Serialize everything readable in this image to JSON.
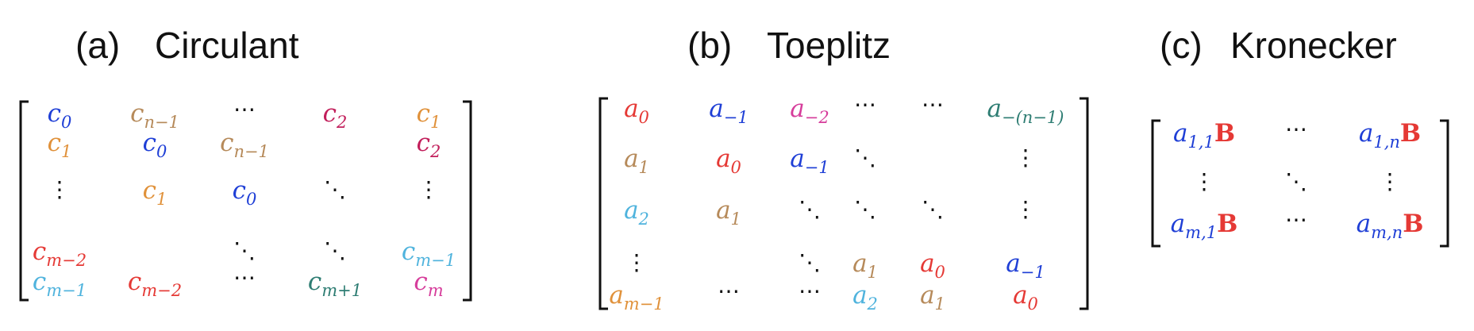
{
  "colors": {
    "blue": "#1f3fd6",
    "tan": "#b68a5a",
    "orange": "#e0913a",
    "crimson": "#c21f5b",
    "red": "#e53935",
    "sky": "#4fb3dd",
    "teal": "#2e7d73",
    "magenta": "#d63d9b",
    "text": "#111111"
  },
  "panels": [
    {
      "id": "circulant",
      "label": "(a)",
      "title": "Circulant",
      "entries": [
        {
          "r": 0,
          "c": 0,
          "base": "c",
          "sub": "0",
          "color": "blue"
        },
        {
          "r": 0,
          "c": 1,
          "base": "c",
          "sub": "n−1",
          "color": "tan"
        },
        {
          "r": 0,
          "c": 2,
          "dots": "h"
        },
        {
          "r": 0,
          "c": 3,
          "base": "c",
          "sub": "2",
          "color": "crimson"
        },
        {
          "r": 0,
          "c": 4,
          "base": "c",
          "sub": "1",
          "color": "orange"
        },
        {
          "r": 1,
          "c": 0,
          "base": "c",
          "sub": "1",
          "color": "orange"
        },
        {
          "r": 1,
          "c": 1,
          "base": "c",
          "sub": "0",
          "color": "blue"
        },
        {
          "r": 1,
          "c": 2,
          "base": "c",
          "sub": "n−1",
          "color": "tan"
        },
        {
          "r": 1,
          "c": 4,
          "base": "c",
          "sub": "2",
          "color": "crimson"
        },
        {
          "r": 2,
          "c": 0,
          "dots": "v"
        },
        {
          "r": 2,
          "c": 1,
          "base": "c",
          "sub": "1",
          "color": "orange"
        },
        {
          "r": 2,
          "c": 2,
          "base": "c",
          "sub": "0",
          "color": "blue"
        },
        {
          "r": 2,
          "c": 3,
          "dots": "d"
        },
        {
          "r": 2,
          "c": 4,
          "dots": "v"
        },
        {
          "r": 3,
          "c": 0,
          "base": "c",
          "sub": "m−2",
          "color": "red"
        },
        {
          "r": 3,
          "c": 2,
          "dots": "d"
        },
        {
          "r": 3,
          "c": 3,
          "dots": "d"
        },
        {
          "r": 3,
          "c": 4,
          "base": "c",
          "sub": "m−1",
          "color": "sky"
        },
        {
          "r": 4,
          "c": 0,
          "base": "c",
          "sub": "m−1",
          "color": "sky"
        },
        {
          "r": 4,
          "c": 1,
          "base": "c",
          "sub": "m−2",
          "color": "red"
        },
        {
          "r": 4,
          "c": 2,
          "dots": "h"
        },
        {
          "r": 4,
          "c": 3,
          "base": "c",
          "sub": "m+1",
          "color": "teal"
        },
        {
          "r": 4,
          "c": 4,
          "base": "c",
          "sub": "m",
          "color": "magenta"
        }
      ]
    },
    {
      "id": "toeplitz",
      "label": "(b)",
      "title": "Toeplitz",
      "entries": [
        {
          "r": 0,
          "c": 0,
          "base": "a",
          "sub": "0",
          "color": "red"
        },
        {
          "r": 0,
          "c": 1,
          "base": "a",
          "sub": "−1",
          "color": "blue"
        },
        {
          "r": 0,
          "c": 2,
          "base": "a",
          "sub": "−2",
          "color": "magenta"
        },
        {
          "r": 0,
          "c": 3,
          "dots": "h"
        },
        {
          "r": 0,
          "c": 4,
          "dots": "h"
        },
        {
          "r": 0,
          "c": 5,
          "base": "a",
          "sub": "−(n−1)",
          "color": "teal"
        },
        {
          "r": 1,
          "c": 0,
          "base": "a",
          "sub": "1",
          "color": "tan"
        },
        {
          "r": 1,
          "c": 1,
          "base": "a",
          "sub": "0",
          "color": "red"
        },
        {
          "r": 1,
          "c": 2,
          "base": "a",
          "sub": "−1",
          "color": "blue"
        },
        {
          "r": 1,
          "c": 3,
          "dots": "d"
        },
        {
          "r": 1,
          "c": 5,
          "dots": "v"
        },
        {
          "r": 2,
          "c": 0,
          "base": "a",
          "sub": "2",
          "color": "sky"
        },
        {
          "r": 2,
          "c": 1,
          "base": "a",
          "sub": "1",
          "color": "tan"
        },
        {
          "r": 2,
          "c": 2,
          "dots": "d"
        },
        {
          "r": 2,
          "c": 3,
          "dots": "d"
        },
        {
          "r": 2,
          "c": 4,
          "dots": "d"
        },
        {
          "r": 2,
          "c": 5,
          "dots": "v"
        },
        {
          "r": 3,
          "c": 0,
          "dots": "v"
        },
        {
          "r": 3,
          "c": 2,
          "dots": "d"
        },
        {
          "r": 3,
          "c": 3,
          "base": "a",
          "sub": "1",
          "color": "tan"
        },
        {
          "r": 3,
          "c": 4,
          "base": "a",
          "sub": "0",
          "color": "red"
        },
        {
          "r": 3,
          "c": 5,
          "base": "a",
          "sub": "−1",
          "color": "blue"
        },
        {
          "r": 4,
          "c": 0,
          "base": "a",
          "sub": "m−1",
          "color": "orange"
        },
        {
          "r": 4,
          "c": 1,
          "dots": "h"
        },
        {
          "r": 4,
          "c": 2,
          "dots": "h"
        },
        {
          "r": 4,
          "c": 3,
          "base": "a",
          "sub": "2",
          "color": "sky"
        },
        {
          "r": 4,
          "c": 4,
          "base": "a",
          "sub": "1",
          "color": "tan"
        },
        {
          "r": 4,
          "c": 5,
          "base": "a",
          "sub": "0",
          "color": "red"
        }
      ]
    },
    {
      "id": "kronecker",
      "label": "(c)",
      "title": "Kronecker",
      "entries": [
        {
          "r": 0,
          "c": 0,
          "base": "a",
          "sub": "1,1",
          "color": "blue",
          "suffix": "B",
          "suffixColor": "red"
        },
        {
          "r": 0,
          "c": 1,
          "dots": "h"
        },
        {
          "r": 0,
          "c": 2,
          "base": "a",
          "sub": "1,n",
          "color": "blue",
          "suffix": "B",
          "suffixColor": "red"
        },
        {
          "r": 1,
          "c": 0,
          "dots": "v"
        },
        {
          "r": 1,
          "c": 1,
          "dots": "d"
        },
        {
          "r": 1,
          "c": 2,
          "dots": "v"
        },
        {
          "r": 2,
          "c": 0,
          "base": "a",
          "sub": "m,1",
          "color": "blue",
          "suffix": "B",
          "suffixColor": "red"
        },
        {
          "r": 2,
          "c": 1,
          "dots": "h"
        },
        {
          "r": 2,
          "c": 2,
          "base": "a",
          "sub": "m,n",
          "color": "blue",
          "suffix": "B",
          "suffixColor": "red"
        }
      ]
    }
  ]
}
